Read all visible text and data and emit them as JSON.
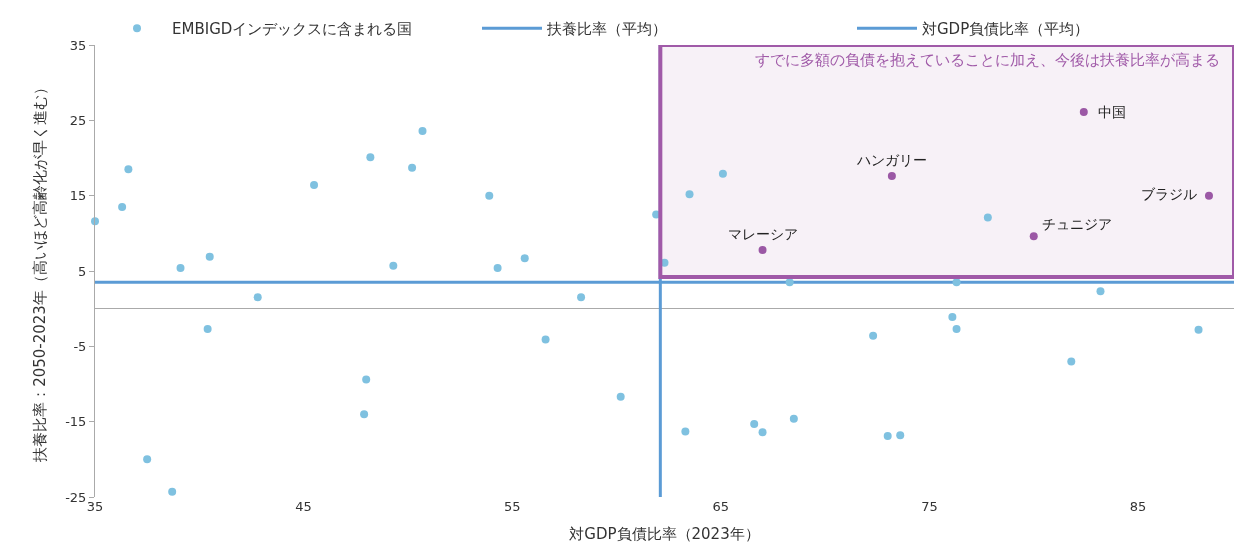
{
  "chart_data": {
    "type": "scatter",
    "xlabel": "対GDP負債比率（2023年）",
    "ylabel": "扶養比率：2050-2023年（高いほど高齢化が早く進む）",
    "xlim": [
      35,
      89.6
    ],
    "ylim": [
      -25,
      35
    ],
    "xticks": [
      35,
      45,
      55,
      65,
      75,
      85
    ],
    "yticks": [
      35,
      25,
      15,
      5,
      -5,
      -15,
      -25
    ],
    "grid": false,
    "legend": "top",
    "marker": "circle",
    "series": [
      {
        "name": "EMBIGDインデックスに含まれる国",
        "color": "#7fc1e0",
        "x": [
          35.0,
          36.3,
          36.6,
          37.5,
          38.7,
          39.1,
          40.5,
          40.4,
          42.8,
          45.5,
          48.0,
          47.9,
          48.2,
          49.3,
          50.2,
          50.7,
          53.9,
          54.3,
          55.6,
          56.6,
          58.3,
          60.2,
          61.9,
          62.3,
          63.5,
          63.3,
          65.1,
          66.6,
          67.0,
          68.5,
          68.3,
          72.3,
          73.0,
          73.6,
          76.1,
          76.3,
          76.3,
          77.8,
          81.8,
          83.2,
          87.9
        ],
        "values": [
          11.6,
          13.5,
          18.5,
          -20.0,
          -24.3,
          5.4,
          6.9,
          -2.7,
          1.5,
          16.4,
          -9.4,
          -14.0,
          20.1,
          5.7,
          18.7,
          23.6,
          15.0,
          5.4,
          6.7,
          -4.1,
          1.5,
          -11.7,
          12.5,
          6.1,
          15.2,
          -16.3,
          17.9,
          -15.3,
          -16.4,
          -14.6,
          3.5,
          -3.6,
          -16.9,
          -16.8,
          -1.1,
          -2.7,
          3.5,
          12.1,
          -7.0,
          2.3,
          -2.8
        ]
      },
      {
        "color": "#9b58a5",
        "x": [
          67.0,
          73.2,
          82.4,
          80.0,
          88.4
        ],
        "values": [
          7.8,
          17.6,
          26.1,
          9.6,
          15.0
        ]
      }
    ],
    "ref_lines": [
      {
        "axis": "y",
        "value": 3.5,
        "label": "扶養比率（平均）",
        "color": "#5b9bd5"
      },
      {
        "axis": "x",
        "value": 62.1,
        "label": "対GDP負債比率（平均）",
        "color": "#5b9bd5"
      }
    ],
    "bands": [
      {
        "axis": "y",
        "from": 4.2,
        "to": 35,
        "label": "すでに多額の負債を抱えていることに加え、今後は扶養比率が高まる",
        "color": "#a05aa8"
      }
    ],
    "annotations": [
      {
        "text": "マレーシア",
        "x": 67.0,
        "y": 7.8
      },
      {
        "text": "ハンガリー",
        "x": 73.2,
        "y": 17.6
      },
      {
        "text": "中国",
        "x": 82.4,
        "y": 26.1
      },
      {
        "text": "チュニジア",
        "x": 80.0,
        "y": 9.6
      },
      {
        "text": "ブラジル",
        "x": 88.4,
        "y": 15.0
      }
    ]
  }
}
